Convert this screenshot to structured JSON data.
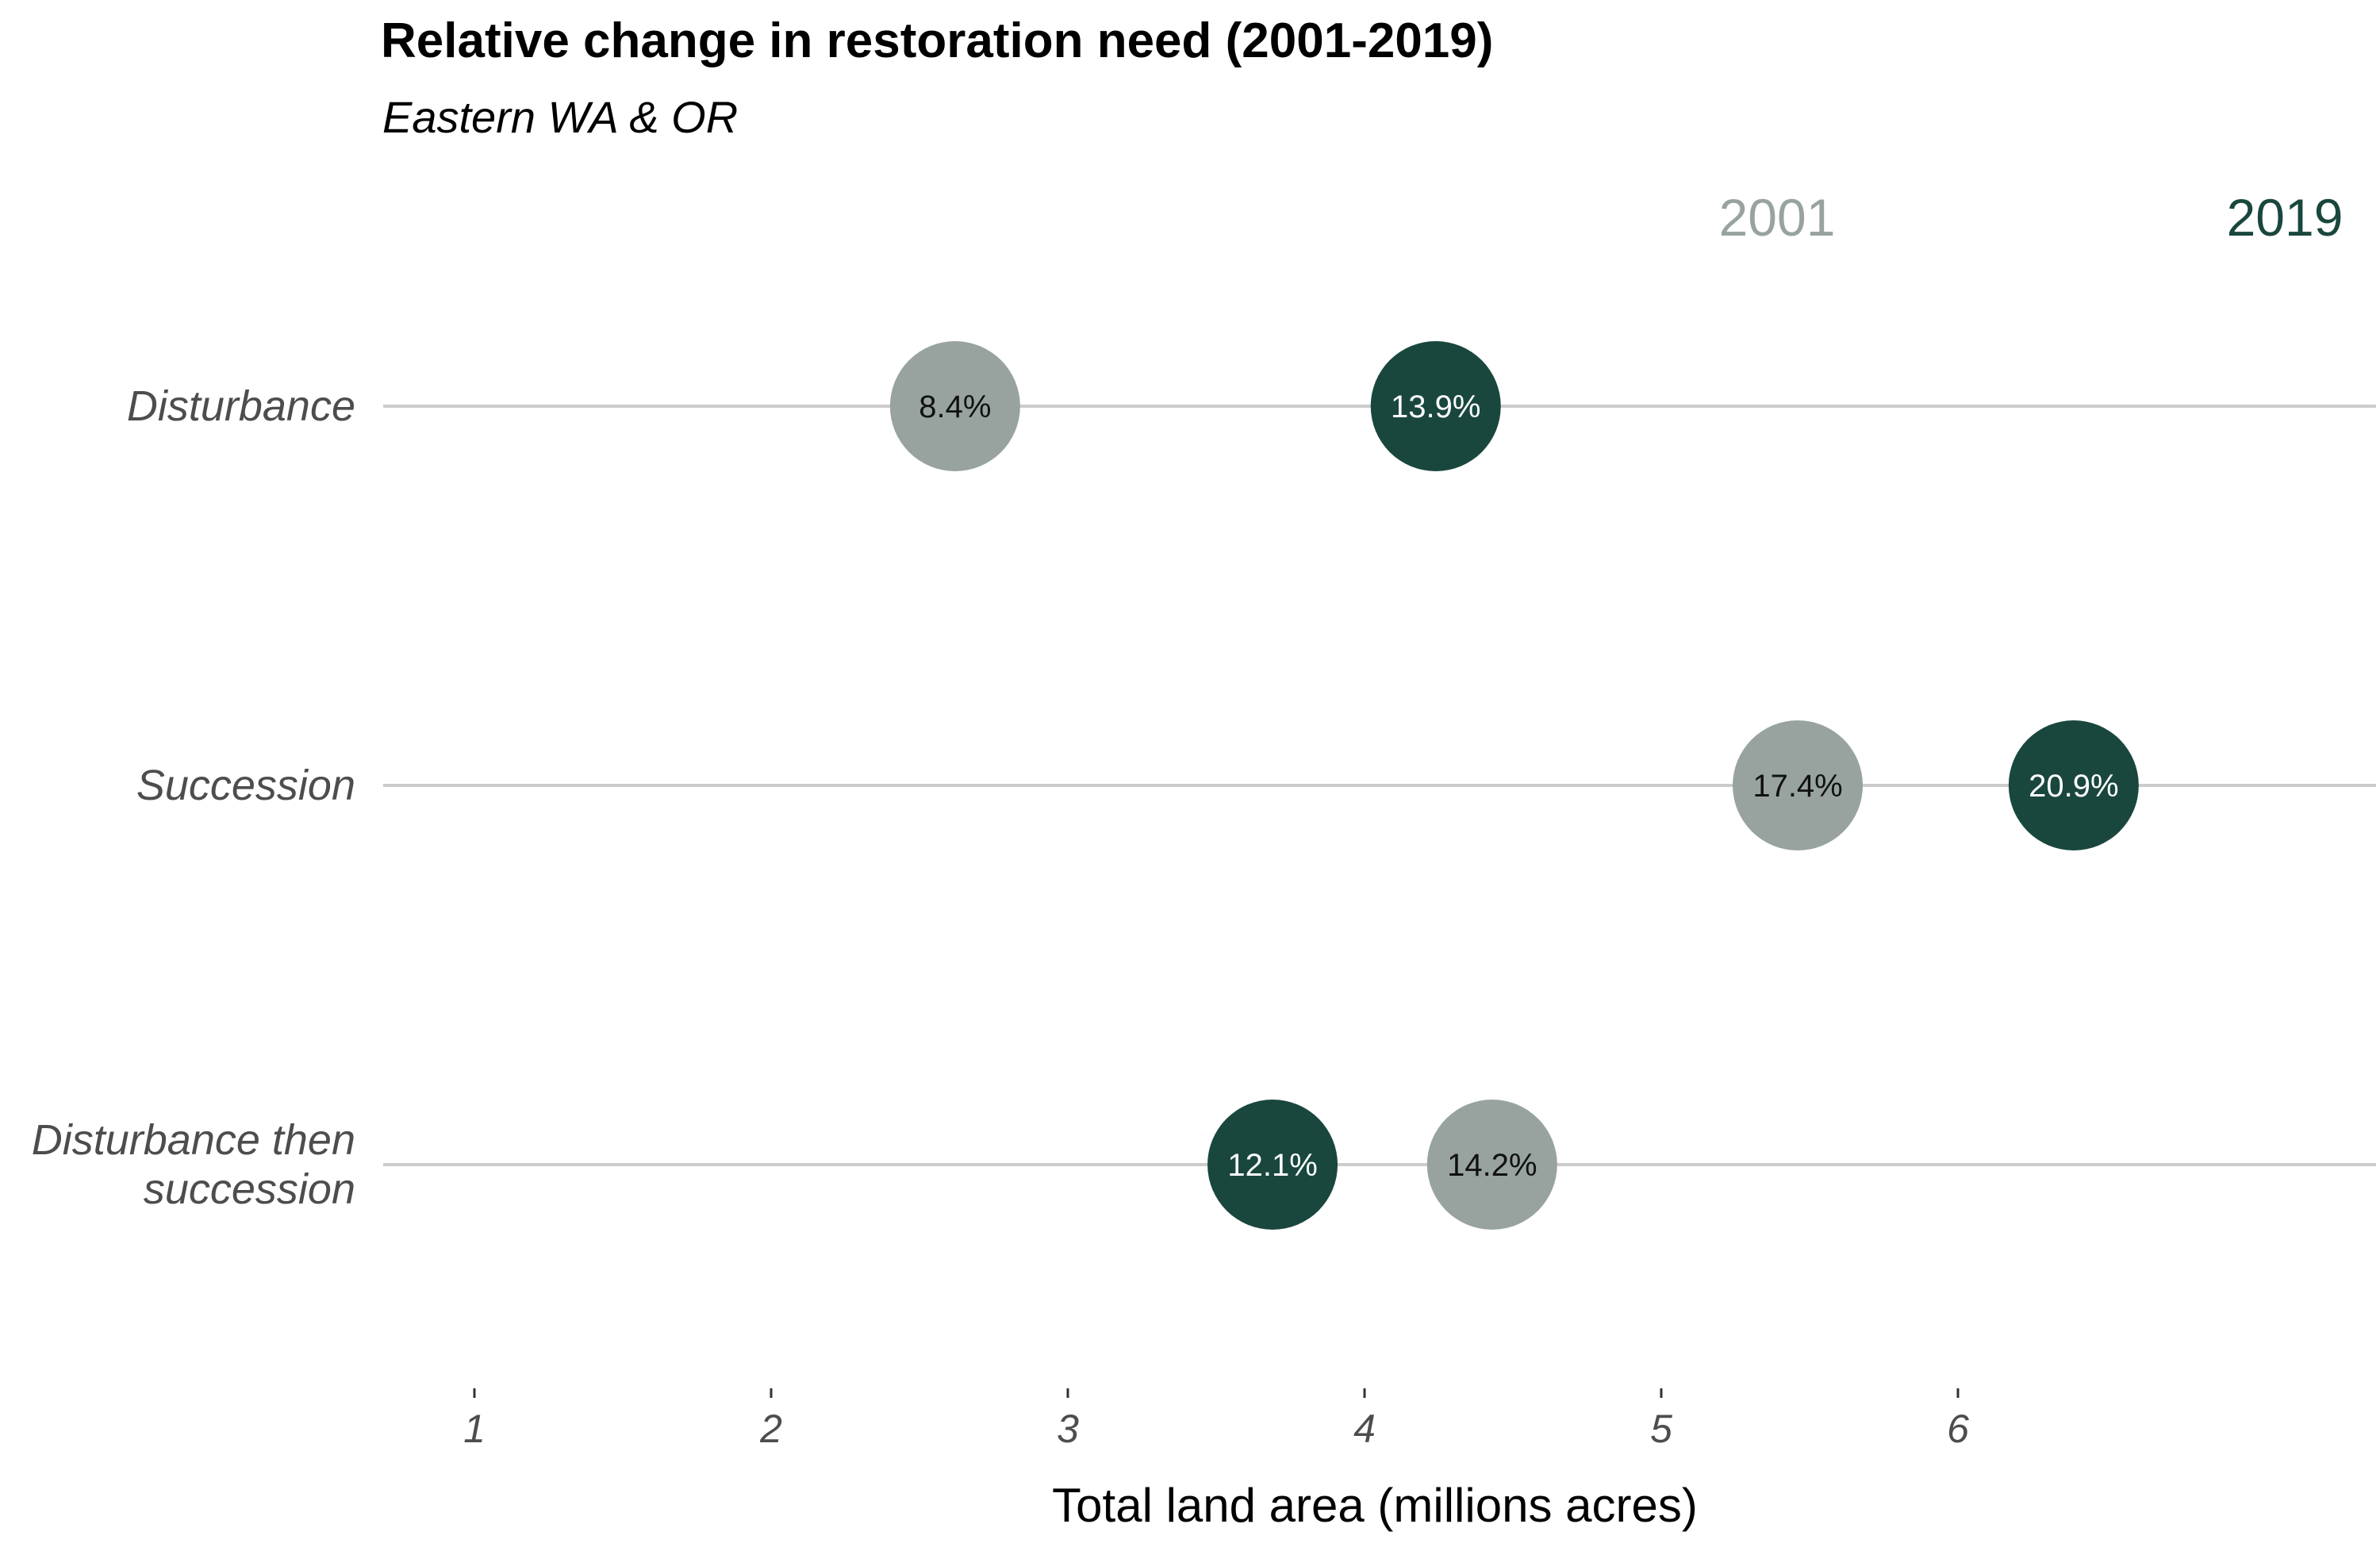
{
  "chart_data": {
    "type": "scatter",
    "title": "Relative change in restoration need (2001-2019)",
    "subtitle": "Eastern WA & OR",
    "xlabel": "Total land area (millions acres)",
    "ylabel": "",
    "xlim": [
      0.7,
      7.4
    ],
    "xticks": [
      1,
      2,
      3,
      4,
      5,
      6
    ],
    "grid": false,
    "legend": {
      "placement": "top-right",
      "entries": [
        "2001",
        "2019"
      ]
    },
    "categories": [
      [
        "Disturbance"
      ],
      [
        "Succession"
      ],
      [
        "Disturbance then",
        "succession"
      ]
    ],
    "series": [
      {
        "name": "2001",
        "color": "#98a3a0",
        "label_color": "#111111",
        "values": [
          2.62,
          5.46,
          4.43
        ],
        "labels": [
          "8.4%",
          "17.4%",
          "14.2%"
        ]
      },
      {
        "name": "2019",
        "color": "#19473d",
        "label_color": "#ffffff",
        "values": [
          4.24,
          6.39,
          3.69
        ],
        "labels": [
          "13.9%",
          "20.9%",
          "12.1%"
        ]
      }
    ]
  }
}
